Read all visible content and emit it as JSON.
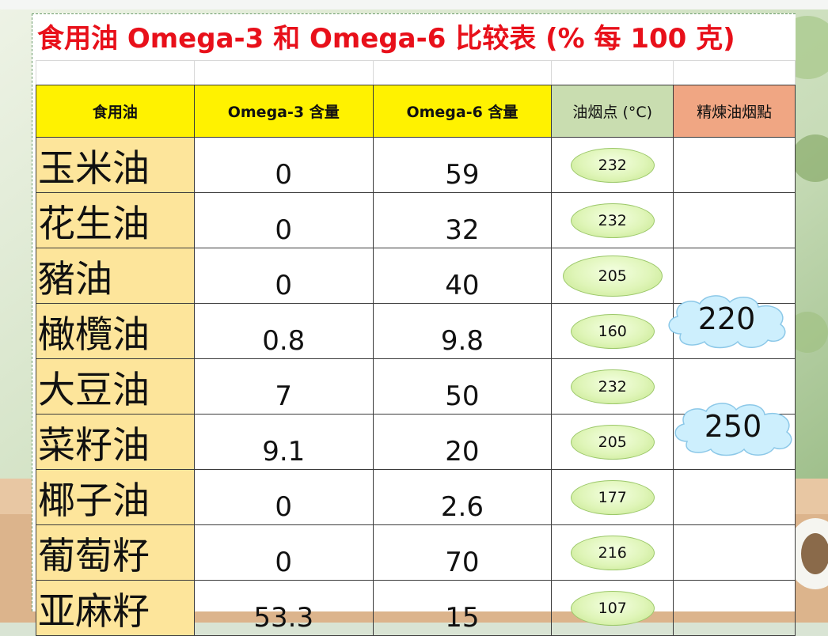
{
  "title": "食用油 Omega-3 和 Omega-6 比较表 (% 每 100 克)",
  "headers": [
    "食用油",
    "Omega-3 含量",
    "Omega-6 含量",
    "油烟点 (°C)",
    "精煉油烟點"
  ],
  "rows": [
    {
      "oil": "玉米油",
      "omega3": "0",
      "omega6": "59",
      "smoke": "232"
    },
    {
      "oil": "花生油",
      "omega3": "0",
      "omega6": "32",
      "smoke": "232"
    },
    {
      "oil": "豬油",
      "omega3": "0",
      "omega6": "40",
      "smoke": "205"
    },
    {
      "oil": "橄欖油",
      "omega3": "0.8",
      "omega6": "9.8",
      "smoke": "160"
    },
    {
      "oil": "大豆油",
      "omega3": "7",
      "omega6": "50",
      "smoke": "232"
    },
    {
      "oil": "菜籽油",
      "omega3": "9.1",
      "omega6": "20",
      "smoke": "205"
    },
    {
      "oil": "椰子油",
      "omega3": "0",
      "omega6": "2.6",
      "smoke": "177"
    },
    {
      "oil": "葡萄籽",
      "omega3": "0",
      "omega6": "70",
      "smoke": "216"
    },
    {
      "oil": "亚麻籽",
      "omega3": "53.3",
      "omega6": "15",
      "smoke": "107"
    }
  ],
  "refined_clouds": {
    "olive": "220",
    "canola": "250"
  },
  "colors": {
    "title": "#e8101a",
    "header_yellow": "#fff200",
    "header_green": "#c9ddb0",
    "header_orange": "#f0a683",
    "name_column": "#fde59b",
    "oval": "#dff5b8",
    "cloud": "#cdeffd"
  }
}
